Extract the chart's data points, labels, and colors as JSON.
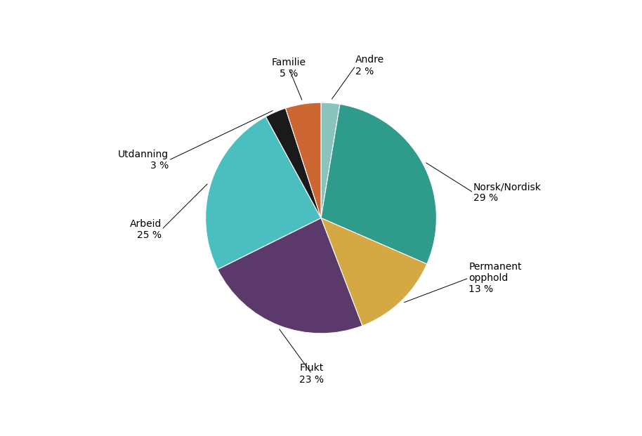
{
  "labels": [
    "Norsk/Nordisk",
    "Permanent\nopphold",
    "Flukt",
    "Arbeid",
    "Utdanning",
    "Familie",
    "Andre"
  ],
  "label_line1": [
    "Norsk/Nordisk",
    "Permanent",
    "Flukt",
    "Arbeid",
    "Utdanning",
    "Familie",
    "Andre"
  ],
  "label_line2": [
    "",
    "opphold",
    "",
    "",
    "",
    "",
    ""
  ],
  "values": [
    3200,
    1400,
    2600,
    2700,
    330,
    550,
    290
  ],
  "percentages": [
    "29 %",
    "13 %",
    "23 %",
    "25 %",
    "3 %",
    "5 %",
    "2 %"
  ],
  "colors": [
    "#2E9B8B",
    "#D4A843",
    "#5B3A6B",
    "#4BBFBF",
    "#1A1A1A",
    "#CC6633",
    "#88C4BB"
  ],
  "figsize": [
    9.14,
    6.21
  ],
  "dpi": 100,
  "background_color": "#ffffff",
  "label_positions": [
    [
      1.32,
      0.22,
      "left"
    ],
    [
      1.28,
      -0.52,
      "left"
    ],
    [
      -0.08,
      -1.35,
      "center"
    ],
    [
      -1.38,
      -0.1,
      "right"
    ],
    [
      -1.32,
      0.5,
      "right"
    ],
    [
      -0.28,
      1.3,
      "center"
    ],
    [
      0.3,
      1.32,
      "left"
    ]
  ]
}
